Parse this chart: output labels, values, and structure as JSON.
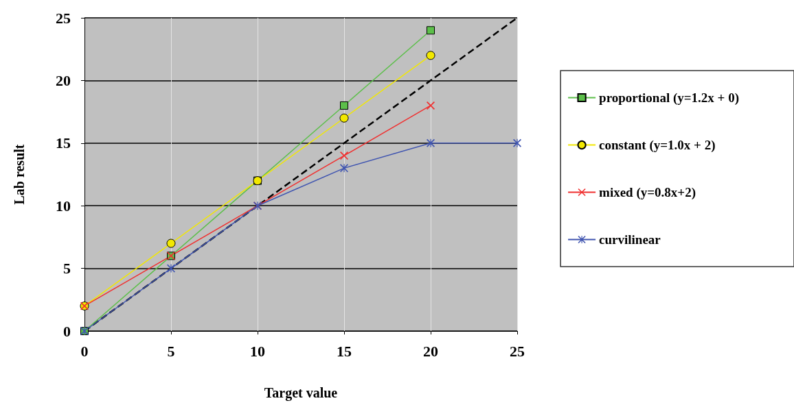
{
  "chart_data": {
    "type": "line",
    "xlabel": "Target value",
    "ylabel": "Lab result",
    "xlim": [
      0,
      25
    ],
    "xticks": [
      0,
      5,
      10,
      15,
      20,
      25
    ],
    "ylim": [
      0,
      25
    ],
    "yticks": [
      0,
      5,
      10,
      15,
      20,
      25
    ],
    "grid": true,
    "legend": "right",
    "series": [
      {
        "name": "proportional (y=1.2x + 0)",
        "color": "#5cbf4a",
        "marker": "square",
        "x": [
          0,
          5,
          10,
          15,
          20
        ],
        "values": [
          0,
          6,
          12,
          18,
          24
        ]
      },
      {
        "name": "constant (y=1.0x + 2)",
        "color": "#f2e800",
        "marker": "circle",
        "x": [
          0,
          5,
          10,
          15,
          20
        ],
        "values": [
          2,
          7,
          12,
          17,
          22
        ]
      },
      {
        "name": "mixed (y=0.8x+2)",
        "color": "#f03030",
        "marker": "cross",
        "x": [
          0,
          5,
          10,
          15,
          20
        ],
        "values": [
          2,
          6,
          10,
          14,
          18
        ]
      },
      {
        "name": "curvilinear",
        "color": "#4055b0",
        "marker": "cross",
        "x": [
          0,
          5,
          10,
          15,
          20,
          25
        ],
        "values": [
          0,
          5,
          10,
          13,
          15,
          15
        ]
      },
      {
        "color": "#000000",
        "marker": "none",
        "line_style": "dashed",
        "x": [
          0,
          25
        ],
        "values": [
          0,
          25
        ]
      }
    ]
  }
}
